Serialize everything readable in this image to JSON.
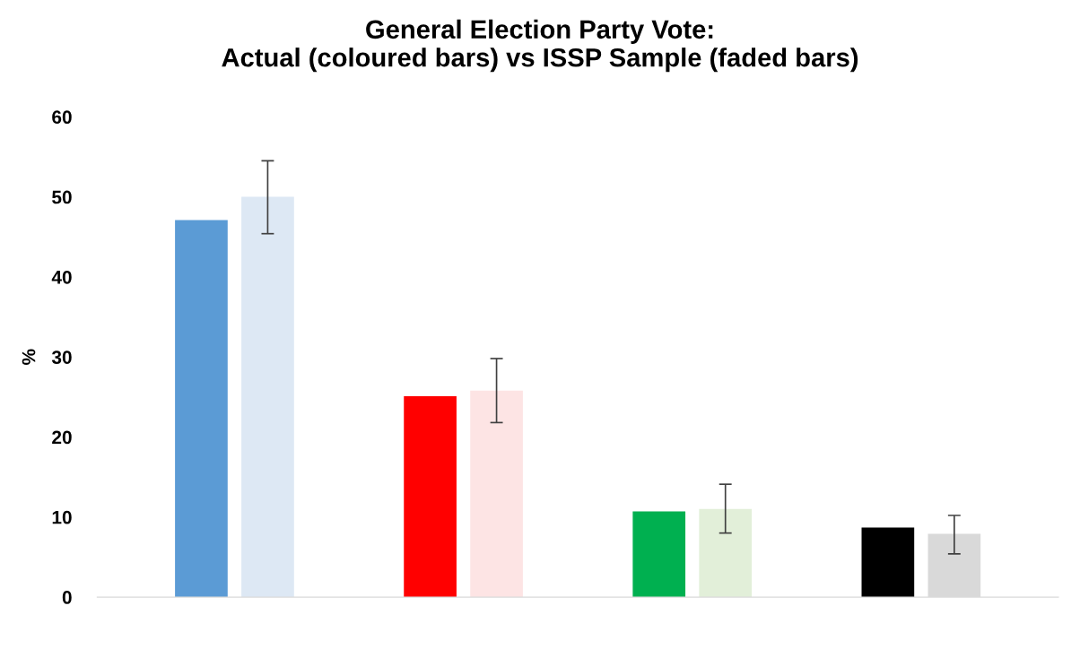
{
  "chart_data": {
    "type": "bar",
    "title": "General Election Party Vote:\nActual (coloured bars) vs ISSP Sample (faded bars)",
    "ylabel": "%",
    "categories": [
      null,
      null,
      null,
      null
    ],
    "series": [
      {
        "colors": [
          "#5b9bd5",
          "#ff0000",
          "#00b050",
          "#000000"
        ],
        "values": [
          47.1,
          25.1,
          10.7,
          8.7
        ]
      },
      {
        "colors": [
          "#dde8f4",
          "#fde4e4",
          "#e2efd9",
          "#d9d9d9"
        ],
        "values": [
          50.0,
          25.8,
          11.0,
          7.9
        ],
        "errors": [
          [
            45.4,
            54.5
          ],
          [
            21.8,
            29.8
          ],
          [
            8.0,
            14.1
          ],
          [
            5.4,
            10.2
          ]
        ]
      }
    ],
    "ylim": [
      0,
      60
    ],
    "yticks": [
      0,
      10,
      20,
      30,
      40,
      50,
      60
    ],
    "grid": false,
    "legend": false
  }
}
